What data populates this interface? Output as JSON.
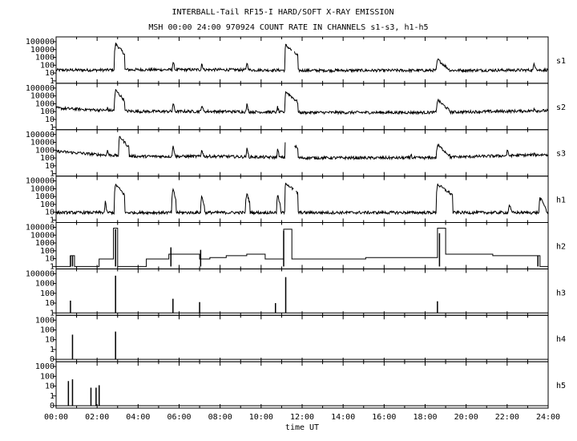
{
  "title": "INTERBALL-Tail RF15-I HARD/SOFT X-RAY EMISSION",
  "subtitle": "MSH 00:00 24:00 970924  COUNT RATE IN CHANNELS s1-s3, h1-h5",
  "chart_data": {
    "type": "line",
    "title": "INTERBALL-Tail RF15-I HARD/SOFT X-RAY EMISSION",
    "subtitle": "MSH 00:00 24:00 970924  COUNT RATE IN CHANNELS s1-s3, h1-h5",
    "xlabel": "time UT",
    "x_unit": "hours UT",
    "xlim": [
      0,
      24
    ],
    "x_ticks": [
      "00:00",
      "02:00",
      "04:00",
      "06:00",
      "08:00",
      "10:00",
      "12:00",
      "14:00",
      "16:00",
      "18:00",
      "20:00",
      "22:00",
      "24:00"
    ],
    "y_scale": "log",
    "grid": false,
    "panels": [
      {
        "name": "s1",
        "ylim": [
          1,
          100000
        ],
        "y_ticks": [
          "100000",
          "10000",
          "1000",
          "100",
          "10",
          "1"
        ],
        "style": "noisy",
        "baseline": [
          [
            0,
            20
          ],
          [
            2.3,
            20
          ],
          [
            3,
            22
          ],
          [
            8,
            22
          ],
          [
            12,
            18
          ],
          [
            18,
            18
          ],
          [
            24,
            20
          ]
        ],
        "peaks": [
          [
            2.9,
            30000,
            0.15
          ],
          [
            5.7,
            200,
            0.05
          ],
          [
            7.1,
            150,
            0.05
          ],
          [
            9.3,
            180,
            0.05
          ],
          [
            11.2,
            20000,
            0.2
          ],
          [
            18.6,
            400,
            0.2
          ],
          [
            23.3,
            120,
            0.1
          ]
        ],
        "gaps": [
          [
            11.5,
            11.6
          ]
        ]
      },
      {
        "name": "s2",
        "ylim": [
          1,
          100000
        ],
        "y_ticks": [
          "100000",
          "10000",
          "1000",
          "100",
          "10",
          "1"
        ],
        "style": "noisy",
        "baseline": [
          [
            0,
            200
          ],
          [
            2,
            120
          ],
          [
            4,
            80
          ],
          [
            8,
            80
          ],
          [
            12,
            60
          ],
          [
            18,
            60
          ],
          [
            24,
            100
          ]
        ],
        "peaks": [
          [
            2.5,
            300,
            0.05
          ],
          [
            2.9,
            30000,
            0.15
          ],
          [
            5.7,
            800,
            0.05
          ],
          [
            7.1,
            600,
            0.05
          ],
          [
            9.3,
            600,
            0.05
          ],
          [
            10.8,
            300,
            0.05
          ],
          [
            11.2,
            20000,
            0.2
          ],
          [
            18.6,
            2000,
            0.2
          ],
          [
            23.3,
            250,
            0.1
          ]
        ],
        "gaps": []
      },
      {
        "name": "s3",
        "ylim": [
          1,
          100000
        ],
        "y_ticks": [
          "100000",
          "10000",
          "1000",
          "100",
          "10",
          "1"
        ],
        "style": "noisy",
        "baseline": [
          [
            0,
            500
          ],
          [
            2,
            200
          ],
          [
            4,
            120
          ],
          [
            8,
            120
          ],
          [
            12,
            80
          ],
          [
            18,
            80
          ],
          [
            24,
            200
          ]
        ],
        "peaks": [
          [
            1.2,
            400,
            0.05
          ],
          [
            2.5,
            800,
            0.05
          ],
          [
            3.1,
            30000,
            0.15
          ],
          [
            5.7,
            2000,
            0.05
          ],
          [
            7.1,
            1000,
            0.05
          ],
          [
            9.3,
            1000,
            0.05
          ],
          [
            10.8,
            800,
            0.05
          ],
          [
            11.2,
            20000,
            0.2
          ],
          [
            17.3,
            300,
            0.05
          ],
          [
            18.6,
            3000,
            0.2
          ],
          [
            22.0,
            800,
            0.05
          ],
          [
            23.3,
            300,
            0.1
          ]
        ],
        "gaps": [
          [
            11.2,
            11.6
          ]
        ]
      },
      {
        "name": "h1",
        "ylim": [
          1,
          100000
        ],
        "y_ticks": [
          "100000",
          "10000",
          "1000",
          "100",
          "10",
          "1"
        ],
        "style": "noisy",
        "baseline": [
          [
            0,
            8
          ],
          [
            5,
            8
          ],
          [
            12,
            8
          ],
          [
            18,
            8
          ],
          [
            24,
            8
          ]
        ],
        "peaks": [
          [
            2.4,
            150,
            0.03
          ],
          [
            2.9,
            20000,
            0.15
          ],
          [
            5.7,
            5000,
            0.05
          ],
          [
            7.1,
            800,
            0.05
          ],
          [
            9.3,
            2000,
            0.05
          ],
          [
            10.8,
            1000,
            0.05
          ],
          [
            11.2,
            30000,
            0.2
          ],
          [
            18.6,
            20000,
            0.25
          ],
          [
            22.1,
            100,
            0.05
          ],
          [
            23.6,
            500,
            0.1
          ]
        ],
        "gaps": [
          [
            11.6,
            11.7
          ]
        ]
      },
      {
        "name": "h2",
        "ylim": [
          1,
          100000
        ],
        "y_ticks": [
          "100000",
          "10000",
          "1000",
          "100",
          "10",
          "1"
        ],
        "style": "steps",
        "baseline": [
          [
            0,
            1
          ],
          [
            0.7,
            20
          ],
          [
            0.9,
            1
          ],
          [
            2.1,
            8
          ],
          [
            2.8,
            40000
          ],
          [
            3.0,
            1
          ],
          [
            4.4,
            8
          ],
          [
            5.5,
            30
          ],
          [
            7.0,
            8
          ],
          [
            7.5,
            12
          ],
          [
            8.3,
            20
          ],
          [
            9.3,
            30
          ],
          [
            10.2,
            8
          ],
          [
            11.1,
            30000
          ],
          [
            11.5,
            8
          ],
          [
            15.1,
            12
          ],
          [
            18.6,
            40000
          ],
          [
            19.0,
            30
          ],
          [
            21.3,
            20
          ],
          [
            23.6,
            1
          ]
        ],
        "peaks": [],
        "gaps": []
      },
      {
        "name": "h3",
        "ylim": [
          1,
          100000
        ],
        "y_ticks": [
          "100000",
          "1000",
          "100",
          "10",
          "1"
        ],
        "style": "spikes",
        "baseline": [
          [
            0,
            1
          ],
          [
            24,
            1
          ]
        ],
        "peaks": [
          [
            0.7,
            30,
            0.02
          ],
          [
            2.9,
            30000,
            0.02
          ],
          [
            5.7,
            50,
            0.01
          ],
          [
            7.0,
            20,
            0.01
          ],
          [
            10.7,
            15,
            0.01
          ],
          [
            11.2,
            20000,
            0.02
          ],
          [
            18.6,
            25,
            0.02
          ]
        ],
        "gaps": []
      },
      {
        "name": "h4",
        "ylim": [
          1,
          1000
        ],
        "y_ticks": [
          "1000",
          "100",
          "10",
          "1",
          "0"
        ],
        "style": "spikes",
        "baseline": [
          [
            0,
            1
          ],
          [
            24,
            1
          ]
        ],
        "peaks": [
          [
            0.8,
            60,
            0.02
          ],
          [
            2.9,
            100,
            0.02
          ]
        ],
        "gaps": []
      },
      {
        "name": "h5",
        "ylim": [
          1,
          1000
        ],
        "y_ticks": [
          "1000",
          "100",
          "10",
          "1",
          "0"
        ],
        "style": "spikes",
        "baseline": [
          [
            0,
            1
          ],
          [
            24,
            1
          ]
        ],
        "peaks": [
          [
            0.6,
            60,
            0.02
          ],
          [
            0.8,
            80,
            0.02
          ],
          [
            1.7,
            20,
            0.01
          ],
          [
            1.95,
            20,
            0.01
          ],
          [
            2.1,
            30,
            0.01
          ]
        ],
        "gaps": []
      }
    ]
  }
}
